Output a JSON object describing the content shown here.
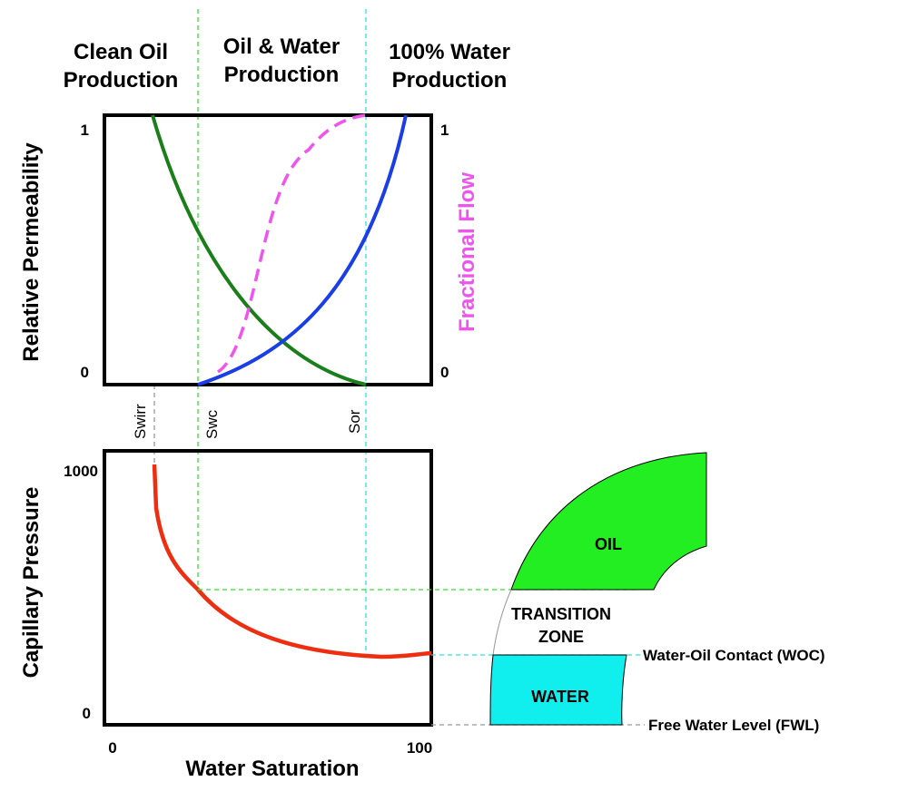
{
  "zones": [
    {
      "lines": [
        "Clean Oil",
        "Production"
      ]
    },
    {
      "lines": [
        "Oil & Water",
        "Production"
      ]
    },
    {
      "lines": [
        "100% Water",
        "Production"
      ]
    }
  ],
  "top_plot": {
    "y_label": "Relative Permeability",
    "y2_label": "Fractional Flow",
    "y_ticks": [
      1,
      0
    ],
    "y2_ticks": [
      1,
      0
    ]
  },
  "markers": [
    "Swirr",
    "Swc",
    "Sor"
  ],
  "bottom_plot": {
    "y_label": "Capillary Pressure",
    "y_ticks": [
      1000,
      0
    ],
    "x_ticks": [
      0,
      100
    ],
    "x_label": "Water Saturation"
  },
  "reservoir": {
    "oil": "OIL",
    "transition": [
      "TRANSITION",
      "ZONE"
    ],
    "water": "WATER",
    "woc": "Water-Oil Contact (WOC)",
    "fwl": "Free Water Level (FWL)"
  }
}
